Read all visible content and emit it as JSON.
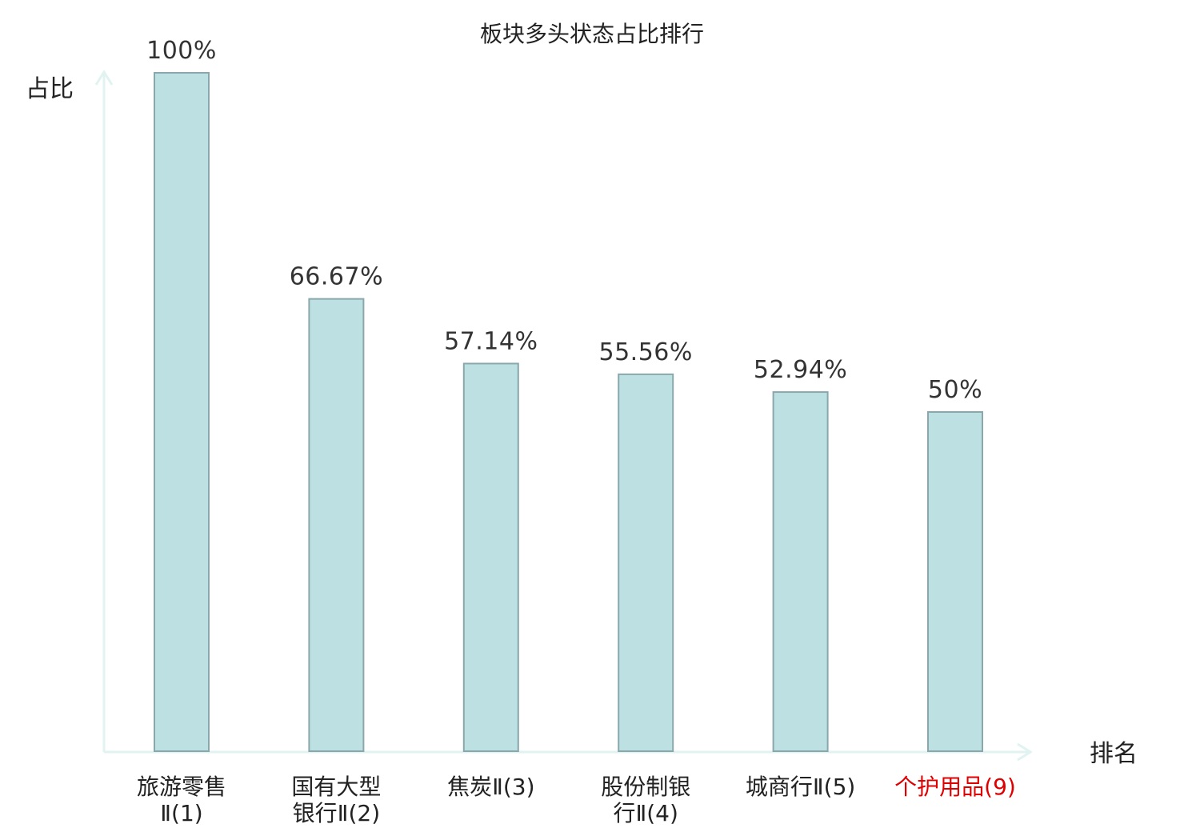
{
  "chart_data": {
    "type": "bar",
    "title": "板块多头状态占比排行",
    "ylabel": "占比",
    "xlabel": "排名",
    "ylim": [
      0,
      100
    ],
    "grid": false,
    "legend": "none",
    "categories": [
      [
        "旅游零售",
        "Ⅱ(1)"
      ],
      [
        "国有大型",
        "银行Ⅱ(2)"
      ],
      [
        "焦炭Ⅱ(3)"
      ],
      [
        "股份制银",
        "行Ⅱ(4)"
      ],
      [
        "城商行Ⅱ(5)"
      ],
      [
        "个护用品(9)"
      ]
    ],
    "values": [
      100,
      66.67,
      57.14,
      55.56,
      52.94,
      50
    ],
    "value_labels": [
      "100%",
      "66.67%",
      "57.14%",
      "55.56%",
      "52.94%",
      "50%"
    ],
    "highlight_index": 5,
    "colors": {
      "bar_fill": "#bde0e3",
      "bar_stroke": "#8aa8ab",
      "axis": "#e0f3f1",
      "text": "#222222",
      "highlight_text": "#e00000"
    }
  }
}
